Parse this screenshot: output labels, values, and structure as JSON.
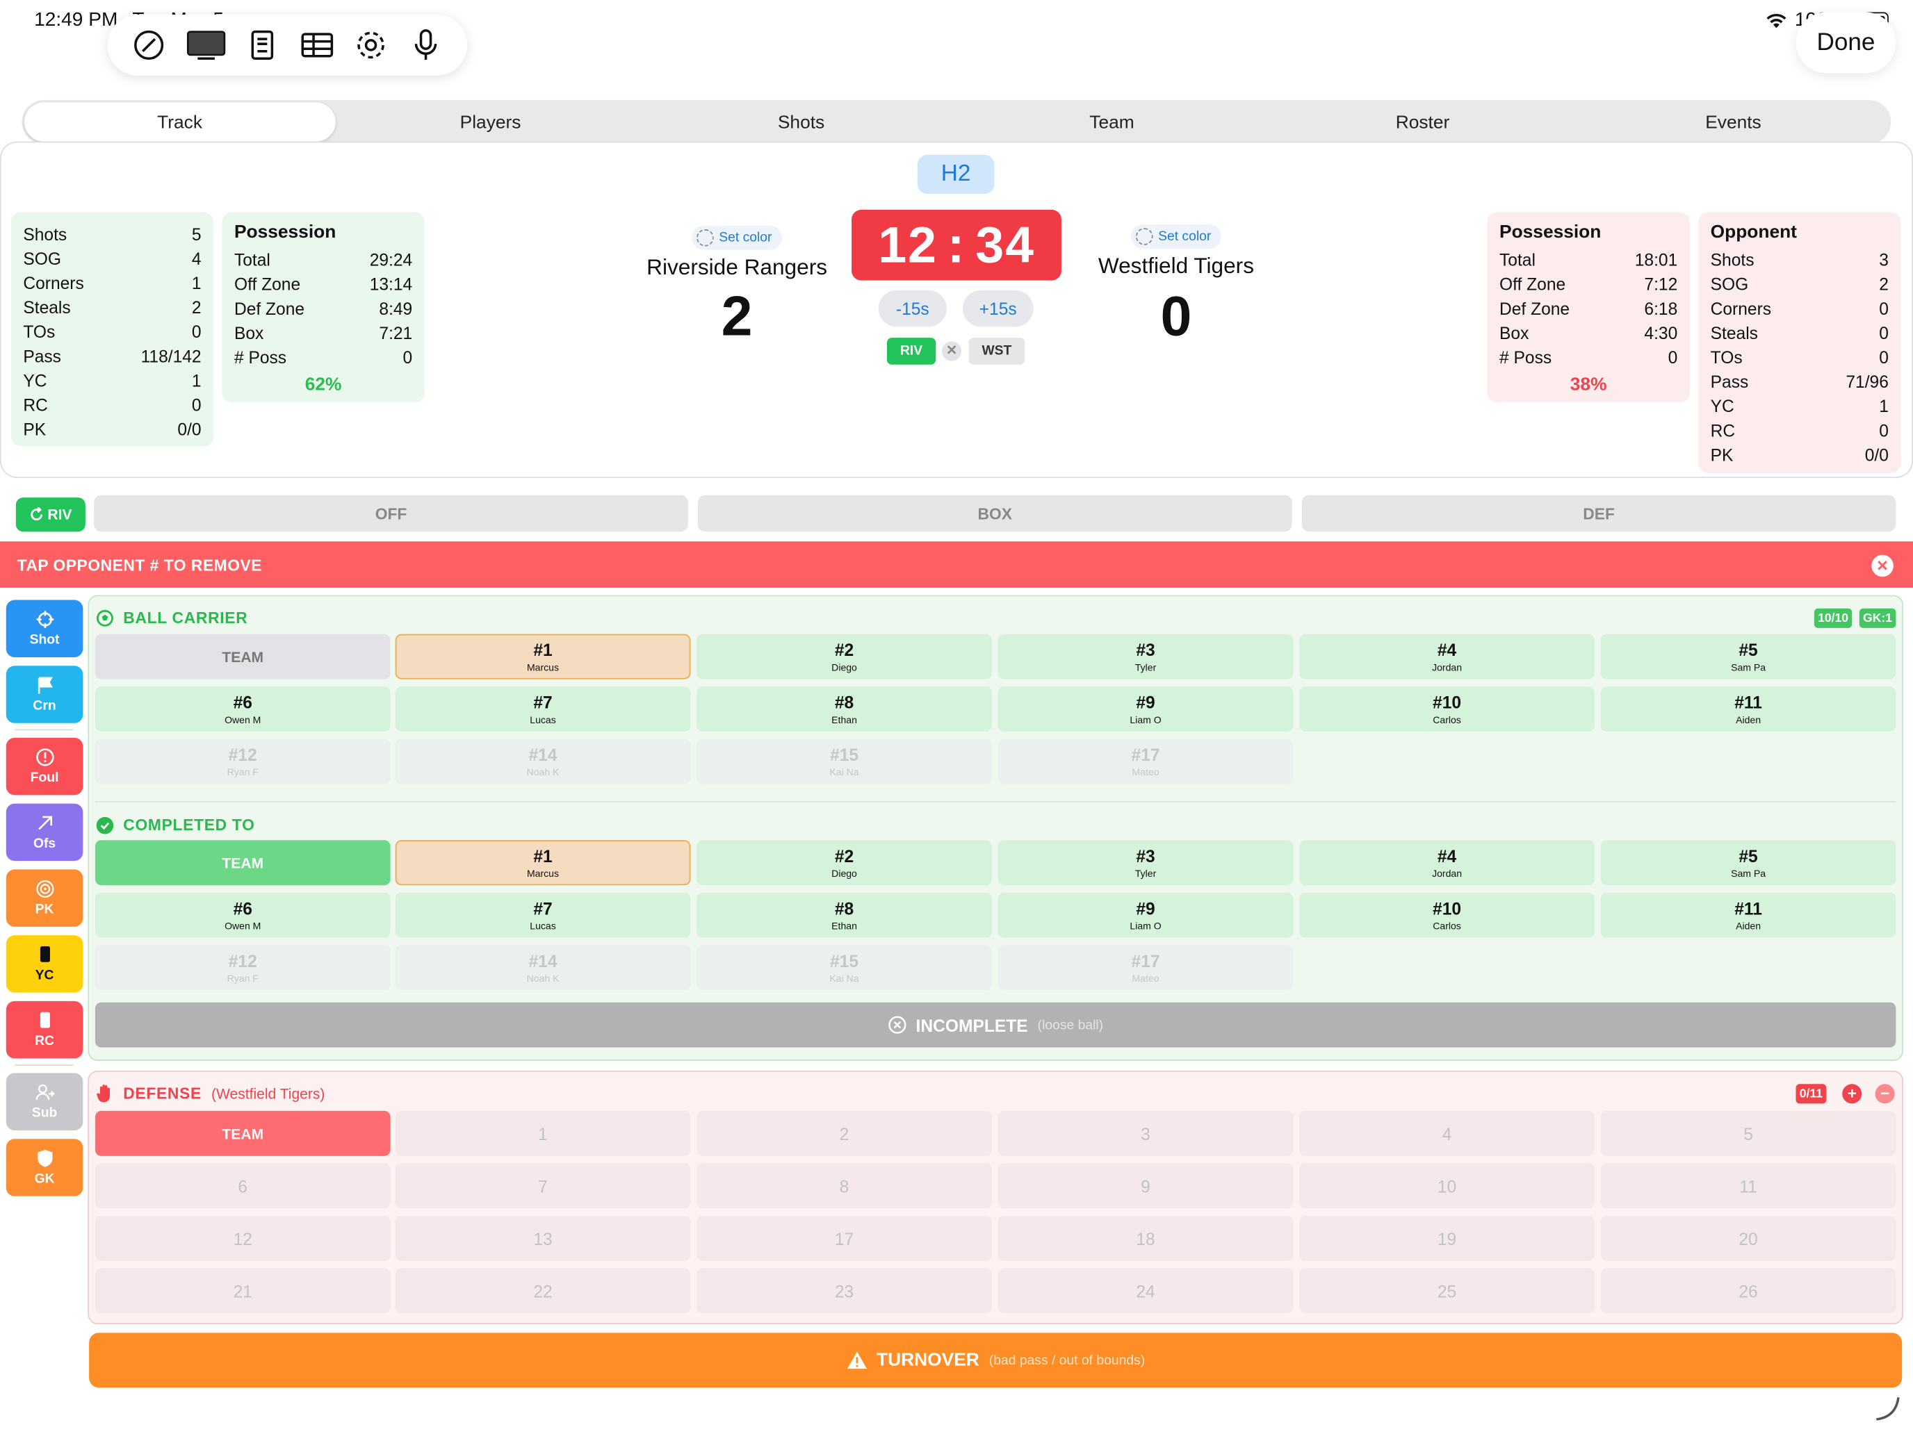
{
  "status_bar": {
    "time": "12:49 PM",
    "date": "Tue May 5",
    "battery": "100%"
  },
  "toolbar": {
    "icons": [
      "compass-icon",
      "display-icon",
      "contact-card-icon",
      "table-icon",
      "gear-icon",
      "microphone-icon"
    ],
    "done_label": "Done"
  },
  "tabs": [
    "Track",
    "Players",
    "Shots",
    "Team",
    "Roster",
    "Events"
  ],
  "period": "H2",
  "clock": {
    "minutes": "12",
    "seconds": "34",
    "minus": "-15s",
    "plus": "+15s"
  },
  "home": {
    "name": "Riverside Rangers",
    "score": "2",
    "set_color": "Set color",
    "abbr": "RIV",
    "stats": [
      [
        "Shots",
        "5"
      ],
      [
        "SOG",
        "4"
      ],
      [
        "Corners",
        "1"
      ],
      [
        "Steals",
        "2"
      ],
      [
        "TOs",
        "0"
      ],
      [
        "Pass",
        "118/142"
      ],
      [
        "YC",
        "1"
      ],
      [
        "RC",
        "0"
      ],
      [
        "PK",
        "0/0"
      ]
    ],
    "possession": {
      "title": "Possession",
      "rows": [
        [
          "Total",
          "29:24"
        ],
        [
          "Off Zone",
          "13:14"
        ],
        [
          "Def Zone",
          "8:49"
        ],
        [
          "Box",
          "7:21"
        ],
        [
          "# Poss",
          "0"
        ]
      ],
      "pct": "62%"
    }
  },
  "away": {
    "name": "Westfield Tigers",
    "score": "0",
    "set_color": "Set color",
    "abbr": "WST",
    "stats_title": "Opponent",
    "stats": [
      [
        "Shots",
        "3"
      ],
      [
        "SOG",
        "2"
      ],
      [
        "Corners",
        "0"
      ],
      [
        "Steals",
        "0"
      ],
      [
        "TOs",
        "0"
      ],
      [
        "Pass",
        "71/96"
      ],
      [
        "YC",
        "1"
      ],
      [
        "RC",
        "0"
      ],
      [
        "PK",
        "0/0"
      ]
    ],
    "possession": {
      "title": "Possession",
      "rows": [
        [
          "Total",
          "18:01"
        ],
        [
          "Off Zone",
          "7:12"
        ],
        [
          "Def Zone",
          "6:18"
        ],
        [
          "Box",
          "4:30"
        ],
        [
          "# Poss",
          "0"
        ]
      ],
      "pct": "38%"
    }
  },
  "zones": {
    "chip": "RIV",
    "labels": [
      "OFF",
      "BOX",
      "DEF"
    ]
  },
  "banner": "TAP OPPONENT # TO REMOVE",
  "actions": [
    {
      "label": "Shot",
      "color": "#2a94f4",
      "icon": "crosshair-icon"
    },
    {
      "label": "Crn",
      "color": "#22b5ee",
      "icon": "flag-icon"
    },
    {
      "label": "Foul",
      "color": "#fb4f57",
      "icon": "alert-circle-icon"
    },
    {
      "label": "Ofs",
      "color": "#8b73ee",
      "icon": "arrow-up-right-icon"
    },
    {
      "label": "PK",
      "color": "#fe8d31",
      "icon": "target-icon"
    },
    {
      "label": "YC",
      "color": "#ffd10a",
      "icon": "yellow-card-icon"
    },
    {
      "label": "RC",
      "color": "#fb4f57",
      "icon": "red-card-icon"
    },
    {
      "label": "Sub",
      "color": "#c7c7cc",
      "icon": "person-swap-icon"
    },
    {
      "label": "GK",
      "color": "#fe8d31",
      "icon": "shield-icon"
    }
  ],
  "ball_carrier": {
    "title": "BALL CARRIER",
    "badge_count": "10/10",
    "badge_gk": "GK:1",
    "team_label": "TEAM",
    "players": [
      {
        "num": "#1",
        "name": "Marcus",
        "state": "selected"
      },
      {
        "num": "#2",
        "name": "Diego",
        "state": "on"
      },
      {
        "num": "#3",
        "name": "Tyler",
        "state": "on"
      },
      {
        "num": "#4",
        "name": "Jordan",
        "state": "on"
      },
      {
        "num": "#5",
        "name": "Sam Pa",
        "state": "on"
      },
      {
        "num": "#6",
        "name": "Owen M",
        "state": "on"
      },
      {
        "num": "#7",
        "name": "Lucas",
        "state": "on"
      },
      {
        "num": "#8",
        "name": "Ethan",
        "state": "on"
      },
      {
        "num": "#9",
        "name": "Liam O",
        "state": "on"
      },
      {
        "num": "#10",
        "name": "Carlos",
        "state": "on"
      },
      {
        "num": "#11",
        "name": "Aiden",
        "state": "on"
      },
      {
        "num": "#12",
        "name": "Ryan F",
        "state": "off"
      },
      {
        "num": "#14",
        "name": "Noah K",
        "state": "off"
      },
      {
        "num": "#15",
        "name": "Kai Na",
        "state": "off"
      },
      {
        "num": "#17",
        "name": "Mateo",
        "state": "off"
      }
    ]
  },
  "completed_to": {
    "title": "COMPLETED TO",
    "team_label": "TEAM"
  },
  "incomplete": {
    "label": "INCOMPLETE",
    "note": "(loose ball)"
  },
  "defense": {
    "title": "DEFENSE",
    "team": "(Westfield Tigers)",
    "badge": "0/11",
    "team_label": "TEAM",
    "numbers": [
      "1",
      "2",
      "3",
      "4",
      "5",
      "6",
      "7",
      "8",
      "9",
      "10",
      "11",
      "12",
      "13",
      "17",
      "18",
      "19",
      "20",
      "21",
      "22",
      "23",
      "24",
      "25",
      "26"
    ]
  },
  "turnover": {
    "label": "TURNOVER",
    "note": "(bad pass / out of bounds)"
  }
}
